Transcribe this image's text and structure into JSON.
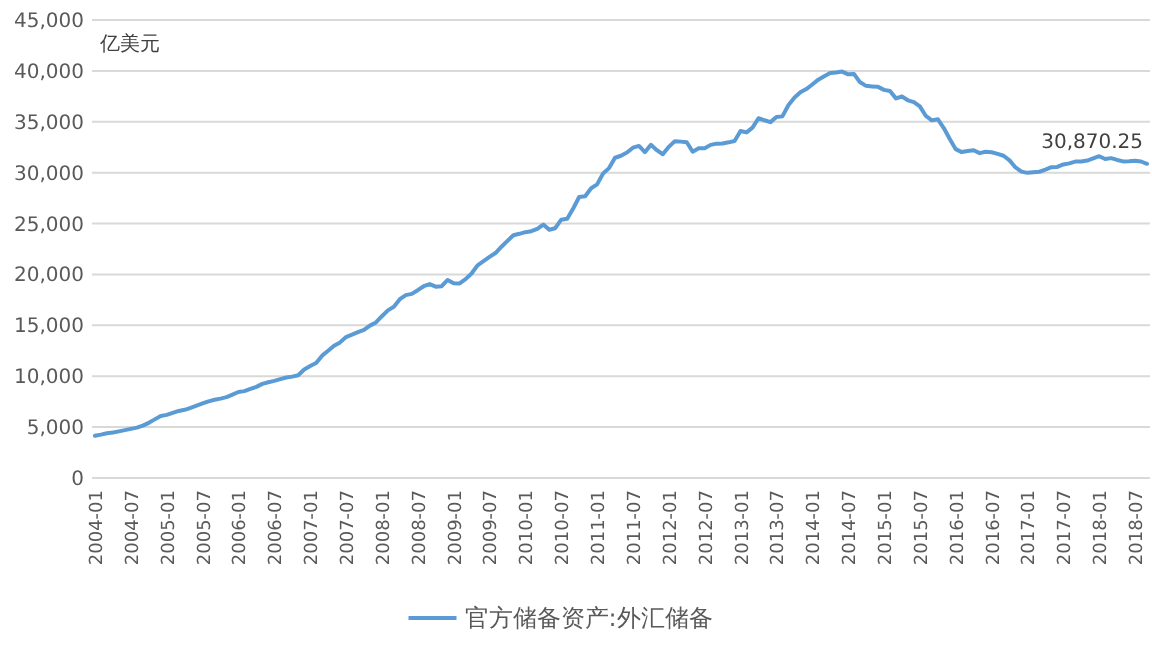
{
  "chart_data": {
    "type": "line",
    "ylabel": "亿美元",
    "categories": [
      "2004-01",
      null,
      null,
      null,
      null,
      null,
      "2004-07",
      null,
      null,
      null,
      null,
      null,
      "2005-01",
      null,
      null,
      null,
      null,
      null,
      "2005-07",
      null,
      null,
      null,
      null,
      null,
      "2006-01",
      null,
      null,
      null,
      null,
      null,
      "2006-07",
      null,
      null,
      null,
      null,
      null,
      "2007-01",
      null,
      null,
      null,
      null,
      null,
      "2007-07",
      null,
      null,
      null,
      null,
      null,
      "2008-01",
      null,
      null,
      null,
      null,
      null,
      "2008-07",
      null,
      null,
      null,
      null,
      null,
      "2009-01",
      null,
      null,
      null,
      null,
      null,
      "2009-07",
      null,
      null,
      null,
      null,
      null,
      "2010-01",
      null,
      null,
      null,
      null,
      null,
      "2010-07",
      null,
      null,
      null,
      null,
      null,
      "2011-01",
      null,
      null,
      null,
      null,
      null,
      "2011-07",
      null,
      null,
      null,
      null,
      null,
      "2012-01",
      null,
      null,
      null,
      null,
      null,
      "2012-07",
      null,
      null,
      null,
      null,
      null,
      "2013-01",
      null,
      null,
      null,
      null,
      null,
      "2013-07",
      null,
      null,
      null,
      null,
      null,
      "2014-01",
      null,
      null,
      null,
      null,
      null,
      "2014-07",
      null,
      null,
      null,
      null,
      null,
      "2015-01",
      null,
      null,
      null,
      null,
      null,
      "2015-07",
      null,
      null,
      null,
      null,
      null,
      "2016-01",
      null,
      null,
      null,
      null,
      null,
      "2016-07",
      null,
      null,
      null,
      null,
      null,
      "2017-01",
      null,
      null,
      null,
      null,
      null,
      "2017-07",
      null,
      null,
      null,
      null,
      null,
      "2018-01",
      null,
      null,
      null,
      null,
      null,
      "2018-07",
      null,
      null
    ],
    "series": [
      {
        "name": "官方储备资产:外汇储备",
        "color": "#5b9bd5",
        "values": [
          4150,
          4260,
          4400,
          4470,
          4580,
          4700,
          4830,
          4950,
          5140,
          5420,
          5760,
          6099,
          6200,
          6400,
          6591,
          6700,
          6900,
          7110,
          7327,
          7530,
          7690,
          7800,
          7940,
          8189,
          8450,
          8536,
          8751,
          8950,
          9250,
          9411,
          9545,
          9720,
          9879,
          9960,
          10100,
          10663,
          11000,
          11300,
          12020,
          12500,
          13000,
          13326,
          13852,
          14086,
          14336,
          14550,
          14970,
          15282,
          15898,
          16471,
          16822,
          17566,
          17969,
          18088,
          18451,
          18841,
          19056,
          18796,
          18847,
          19460,
          19134,
          19121,
          19537,
          20089,
          20894,
          21316,
          21723,
          22104,
          22726,
          23300,
          23856,
          23992,
          24153,
          24247,
          24471,
          24905,
          24395,
          24543,
          25380,
          25480,
          26483,
          27608,
          27680,
          28473,
          28850,
          29914,
          30447,
          31467,
          31663,
          31975,
          32453,
          32625,
          32017,
          32738,
          32209,
          31811,
          32536,
          33096,
          33050,
          32989,
          32061,
          32400,
          32400,
          32730,
          32850,
          32870,
          32980,
          33116,
          34100,
          33955,
          34426,
          35345,
          35148,
          34967,
          35478,
          35530,
          36627,
          37366,
          37895,
          38213,
          38666,
          39137,
          39481,
          39788,
          39839,
          39932,
          39660,
          39688,
          38877,
          38529,
          38474,
          38430,
          38134,
          38016,
          37300,
          37481,
          37111,
          36938,
          36513,
          35574,
          35141,
          35255,
          34383,
          33304,
          32309,
          32023,
          32126,
          32197,
          31917,
          32052,
          32011,
          31852,
          31664,
          31207,
          30516,
          30105,
          29982,
          30051,
          30091,
          30295,
          30536,
          30568,
          30807,
          30915,
          31085,
          31092,
          31193,
          31399,
          31614,
          31345,
          31428,
          31249,
          31106,
          31121,
          31179,
          31097,
          30870.25
        ],
        "value_labels": [
          null,
          null,
          null,
          null,
          null,
          null,
          null,
          null,
          null,
          null,
          null,
          null,
          null,
          null,
          null,
          null,
          null,
          null,
          null,
          null,
          null,
          null,
          null,
          null,
          null,
          null,
          null,
          null,
          null,
          null,
          null,
          null,
          null,
          null,
          null,
          null,
          null,
          null,
          null,
          null,
          null,
          null,
          null,
          null,
          null,
          null,
          null,
          null,
          null,
          null,
          null,
          null,
          null,
          null,
          null,
          null,
          null,
          null,
          null,
          null,
          null,
          null,
          null,
          null,
          null,
          null,
          null,
          null,
          null,
          null,
          null,
          null,
          null,
          null,
          null,
          null,
          null,
          null,
          null,
          null,
          null,
          null,
          null,
          null,
          null,
          null,
          null,
          null,
          null,
          null,
          null,
          null,
          null,
          null,
          null,
          null,
          null,
          null,
          null,
          null,
          null,
          null,
          null,
          null,
          null,
          null,
          null,
          null,
          null,
          null,
          null,
          null,
          null,
          null,
          null,
          null,
          null,
          null,
          null,
          null,
          null,
          null,
          null,
          null,
          null,
          null,
          null,
          null,
          null,
          null,
          null,
          null,
          null,
          null,
          null,
          null,
          null,
          null,
          null,
          null,
          null,
          null,
          null,
          null,
          null,
          null,
          null,
          null,
          null,
          null,
          null,
          null,
          null,
          null,
          null,
          null,
          null,
          null,
          null,
          null,
          null,
          null,
          null,
          null,
          null,
          null,
          null,
          null,
          null,
          null,
          null,
          null,
          null,
          null,
          null,
          null,
          "30,870.25"
        ]
      }
    ],
    "ylim": [
      0,
      45000
    ],
    "yticks": [
      {
        "value": 0,
        "label": "0"
      },
      {
        "value": 5000,
        "label": "5,000"
      },
      {
        "value": 10000,
        "label": "10,000"
      },
      {
        "value": 15000,
        "label": "15,000"
      },
      {
        "value": 20000,
        "label": "20,000"
      },
      {
        "value": 25000,
        "label": "25,000"
      },
      {
        "value": 30000,
        "label": "30,000"
      },
      {
        "value": 35000,
        "label": "35,000"
      },
      {
        "value": 40000,
        "label": "40,000"
      },
      {
        "value": 45000,
        "label": "45,000"
      }
    ],
    "grid": "y",
    "legend": "bottom",
    "line_style": "solid"
  }
}
